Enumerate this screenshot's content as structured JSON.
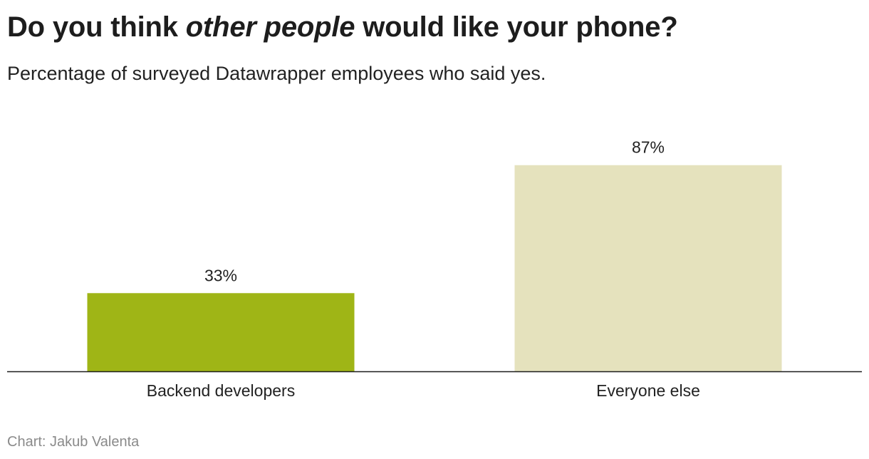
{
  "header": {
    "title_part1": "Do you think ",
    "title_emphasis": "other people",
    "title_part2": " would like your phone?",
    "subtitle": "Percentage of surveyed Datawrapper employees who said yes."
  },
  "footer": {
    "source": "Chart: Jakub Valenta"
  },
  "chart_data": {
    "type": "bar",
    "title": "Do you think other people would like your phone?",
    "subtitle": "Percentage of surveyed Datawrapper employees who said yes.",
    "categories": [
      "Backend developers",
      "Everyone else"
    ],
    "values": [
      33,
      87
    ],
    "value_labels": [
      "33%",
      "87%"
    ],
    "colors": [
      "#9fb516",
      "#e5e2bd"
    ],
    "axis_color": "#1d1d1d",
    "ylim": [
      0,
      100
    ],
    "grid": false,
    "legend": "none"
  }
}
